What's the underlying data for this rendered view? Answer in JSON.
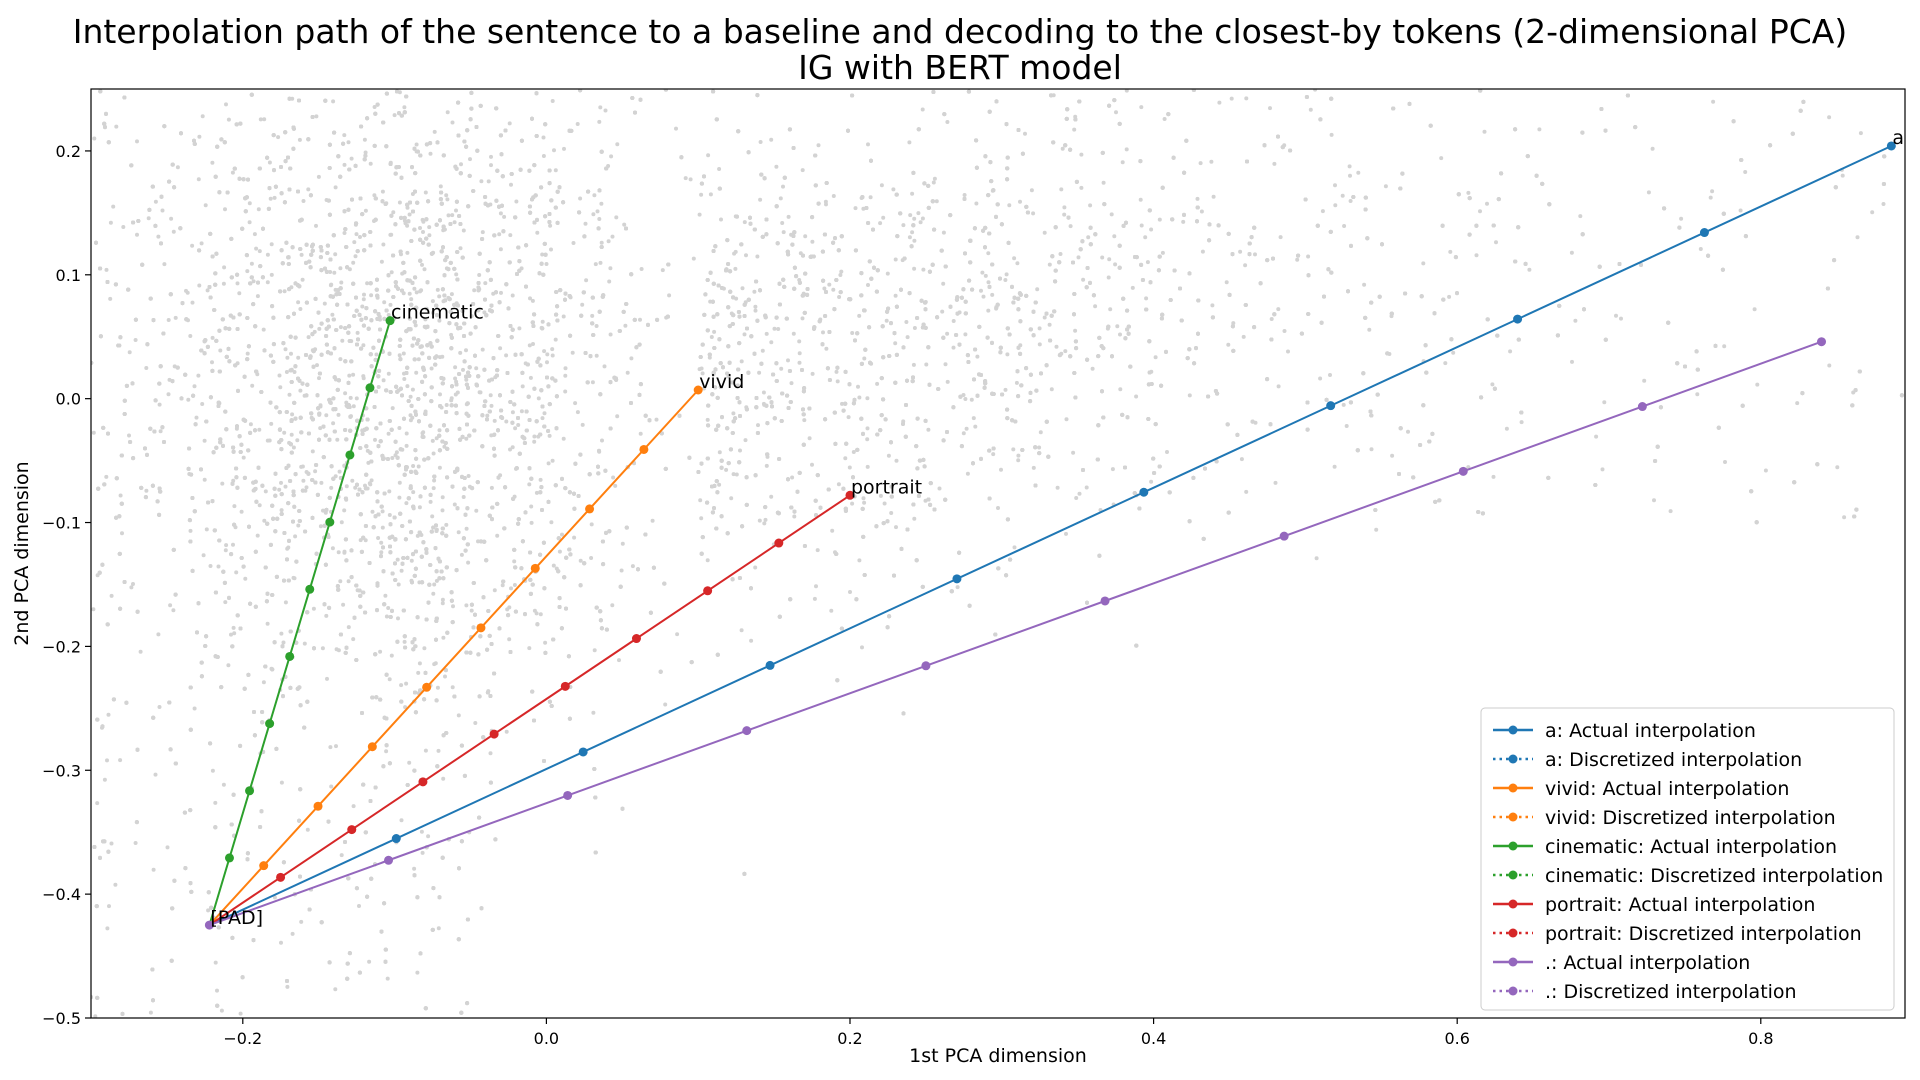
{
  "chart_data": {
    "type": "line",
    "title_lines": [
      "Interpolation path of the sentence to a baseline and decoding to the closest-by tokens (2-dimensional PCA)",
      "IG with BERT model"
    ],
    "xlabel": "1st PCA dimension",
    "ylabel": "2nd PCA dimension",
    "xlim": [
      -0.3,
      0.895
    ],
    "ylim": [
      -0.5,
      0.25
    ],
    "xticks": [
      -0.2,
      0.0,
      0.2,
      0.4,
      0.6,
      0.8
    ],
    "xtick_labels": [
      "−0.2",
      "0.0",
      "0.2",
      "0.4",
      "0.6",
      "0.8"
    ],
    "yticks": [
      -0.5,
      -0.4,
      -0.3,
      -0.2,
      -0.1,
      0.0,
      0.1,
      0.2
    ],
    "ytick_labels": [
      "−0.5",
      "−0.4",
      "−0.3",
      "−0.2",
      "−0.1",
      "0.0",
      "0.1",
      "0.2"
    ],
    "grid": false,
    "legend_position": "lower-right",
    "background_scatter": {
      "color": "#d3d3d3",
      "description_count": 14000
    },
    "baseline": {
      "label": "[PAD]",
      "x": -0.222,
      "y": -0.425
    },
    "series": [
      {
        "token": "a",
        "color": "#1f77b4",
        "legend_actual": "a: Actual interpolation",
        "legend_discretized": "a: Discretized interpolation",
        "end": [
          0.886,
          0.204
        ]
      },
      {
        "token": "vivid",
        "color": "#ff7f0e",
        "legend_actual": "vivid: Actual interpolation",
        "legend_discretized": "vivid: Discretized interpolation",
        "end": [
          0.1,
          0.007
        ]
      },
      {
        "token": "cinematic",
        "color": "#2ca02c",
        "legend_actual": "cinematic: Actual interpolation",
        "legend_discretized": "cinematic: Discretized interpolation",
        "end": [
          -0.103,
          0.063
        ]
      },
      {
        "token": "portrait",
        "color": "#d62728",
        "legend_actual": "portrait: Actual interpolation",
        "legend_discretized": "portrait: Discretized interpolation",
        "end": [
          0.2,
          -0.078
        ]
      },
      {
        "token": ".",
        "color": "#9467bd",
        "legend_actual": ".: Actual interpolation",
        "legend_discretized": ".: Discretized interpolation",
        "end": [
          0.84,
          0.046
        ]
      }
    ],
    "steps": 9
  }
}
